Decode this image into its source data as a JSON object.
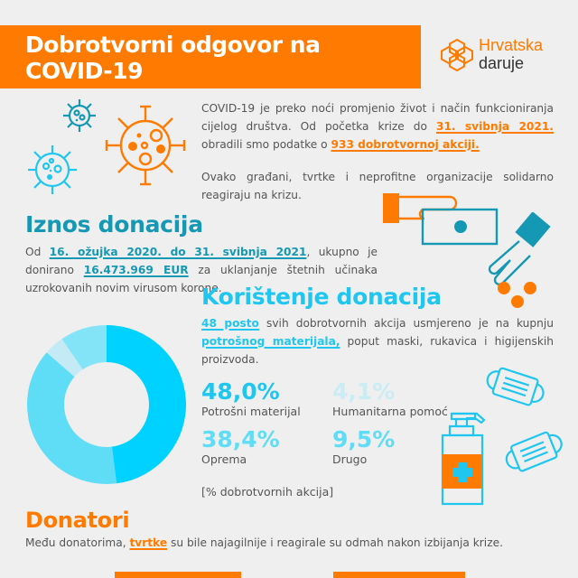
{
  "header": {
    "title_line1": "Dobrotvorni odgovor na",
    "title_line2": "COVID-19",
    "logo_line1": "Hrvatska",
    "logo_line2": "daruje"
  },
  "intro": {
    "p1_a": "COVID-19 je preko noći promjenio život i način funkcioniranja cijelog društva. Od početka krize do ",
    "p1_hl1": "31. svibnja 2021.",
    "p1_b": " obradili smo podatke o ",
    "p1_hl2": "933 dobrotvornoj akciji.",
    "p2": "Ovako građani, tvrtke i neprofitne organizacije solidarno reagiraju na krizu."
  },
  "iznos": {
    "heading": "Iznos donacija",
    "text_a": "Od ",
    "hl1": "16. ožujka 2020. do 31. svibnja 2021",
    "text_b": ", ukupno je donirano ",
    "hl2": "16.473.969  EUR",
    "text_c": " za uklanjanje štetnih učinaka uzrokovanih novim virusom korone."
  },
  "koristenje": {
    "heading": "Korištenje donacija",
    "hl1": "48 posto",
    "text_a": " svih dobrotvornih akcija usmjereno je na kupnju ",
    "hl2": "potrošnog materijala,",
    "text_b": " poput maski, rukavica i higijenskih proizvoda.",
    "stats": [
      {
        "value": "48,0%",
        "label": "Potrošni materijal",
        "color": "#00d2ff"
      },
      {
        "value": "4,1%",
        "label": "Humanitarna pomoć",
        "color": "#c3eaf5"
      },
      {
        "value": "38,4%",
        "label": "Oprema",
        "color": "#5fdcf6"
      },
      {
        "value": "9,5%",
        "label": "Drugo",
        "color": "#84e4f7"
      }
    ],
    "note": "[% dobrotvornih akcija]"
  },
  "donatori": {
    "heading": "Donatori",
    "text_a": "Među donatorima, ",
    "hl": "tvrtke",
    "text_b": " su bile najagilnije i reagirale su odmah nakon izbijanja krize."
  },
  "chart_data": {
    "type": "pie",
    "title": "Korištenje donacija",
    "categories": [
      "Potrošni materijal",
      "Oprema",
      "Humanitarna pomoć",
      "Drugo"
    ],
    "values": [
      48.0,
      38.4,
      4.1,
      9.5
    ],
    "colors": [
      "#00d2ff",
      "#5fdcf6",
      "#c3eaf5",
      "#84e4f7"
    ],
    "unit": "% dobrotvornih akcija",
    "donut": true
  },
  "colors": {
    "orange": "#ff7a00",
    "teal": "#1598b4",
    "cyan": "#1fc6ef",
    "background": "#efefef"
  }
}
